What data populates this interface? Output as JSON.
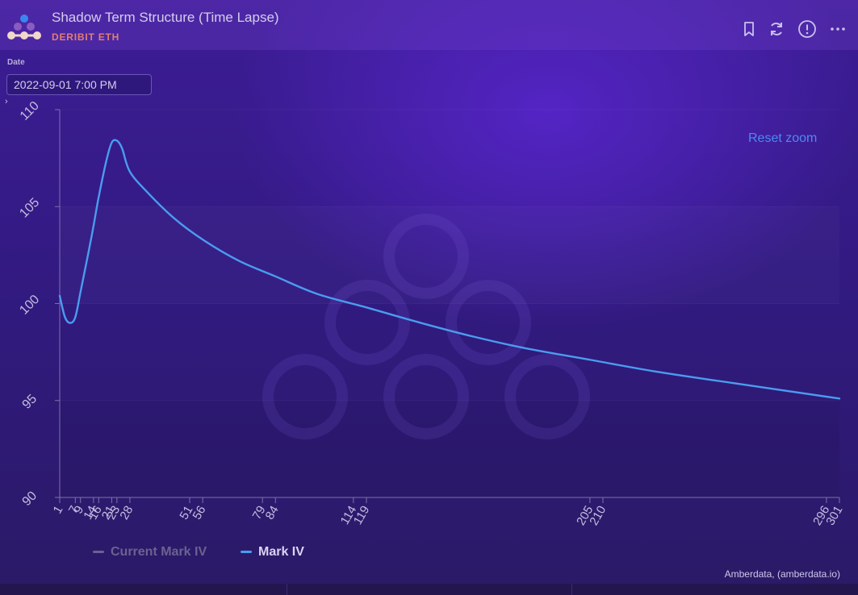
{
  "header": {
    "title": "Shadow Term Structure (Time Lapse)",
    "subtitle": "DERIBIT ETH",
    "icons": [
      "bookmark-icon",
      "refresh-icon",
      "info-icon",
      "more-icon"
    ]
  },
  "controls": {
    "date_label": "Date",
    "date_value": "2022-09-01 7:00 PM"
  },
  "reset_zoom": "Reset zoom",
  "credits": "Amberdata, (amberdata.io)",
  "colors": {
    "mark_iv": "#4a9cf0",
    "current_mark_iv_hidden": "#6a6290",
    "subtitle": "#e07f73",
    "reset_zoom": "#4c8af0"
  },
  "chart_data": {
    "type": "line",
    "title": "",
    "xlabel": "",
    "ylabel": "",
    "ylim": [
      90,
      110
    ],
    "yticks": [
      "90",
      "95",
      "100",
      "105",
      "110"
    ],
    "xticks": [
      "1",
      "7",
      "9",
      "14",
      "16",
      "21",
      "23",
      "28",
      "51",
      "56",
      "79",
      "84",
      "114",
      "119",
      "205",
      "210",
      "296",
      "301"
    ],
    "xlim": [
      1,
      301
    ],
    "legend_position": "bottom-left",
    "series": [
      {
        "name": "Current Mark IV",
        "visible": false,
        "x": [],
        "values": []
      },
      {
        "name": "Mark IV",
        "visible": true,
        "x": [
          1,
          3,
          5,
          7,
          9,
          12,
          14,
          16,
          19,
          21,
          23,
          25,
          28,
          35,
          45,
          56,
          70,
          84,
          100,
          119,
          140,
          160,
          180,
          205,
          230,
          260,
          301
        ],
        "values": [
          100.4,
          99.3,
          99.0,
          99.3,
          100.6,
          102.6,
          104.0,
          105.5,
          107.4,
          108.3,
          108.4,
          108.0,
          106.8,
          105.7,
          104.4,
          103.3,
          102.2,
          101.4,
          100.5,
          99.8,
          99.0,
          98.3,
          97.7,
          97.1,
          96.5,
          95.9,
          95.1
        ]
      }
    ]
  }
}
